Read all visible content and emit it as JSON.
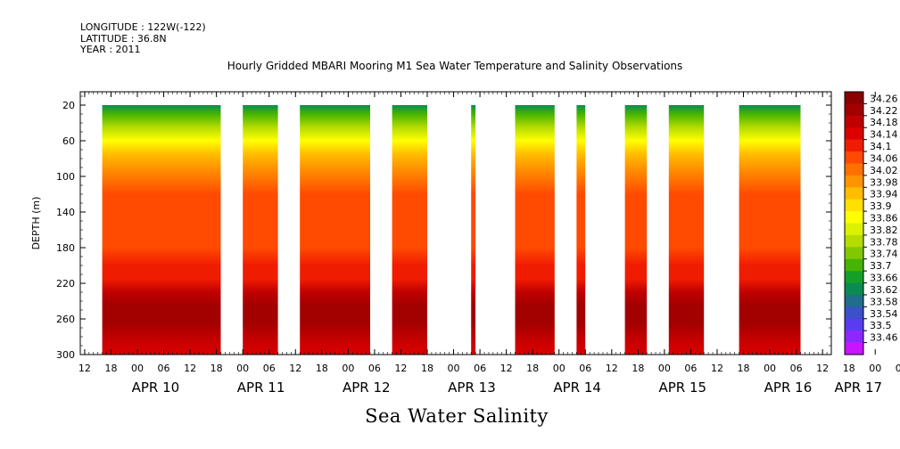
{
  "header": {
    "longitude": "LONGITUDE : 122W(-122)",
    "latitude": "LATITUDE : 36.8N",
    "year": "YEAR : 2011"
  },
  "chart_data": {
    "type": "heatmap",
    "title": "Hourly Gridded MBARI Mooring M1 Sea Water Temperature and Salinity Observations",
    "xlabel": "Sea Water Salinity",
    "ylabel": "DEPTH (m)",
    "x_axis": {
      "range_hours": [
        0,
        171
      ],
      "hour_ticks": [
        "12",
        "18",
        "00",
        "06",
        "12",
        "18",
        "00",
        "06",
        "12",
        "18",
        "00",
        "06",
        "12",
        "18",
        "00",
        "06",
        "12",
        "18",
        "00",
        "06",
        "12",
        "18",
        "00",
        "06",
        "12",
        "18",
        "00",
        "06",
        "12",
        "18",
        "00",
        "06",
        "12",
        "18",
        "00",
        "06"
      ],
      "day_labels": [
        {
          "label": "APR 10",
          "hour": 12
        },
        {
          "label": "APR 11",
          "hour": 36
        },
        {
          "label": "APR 12",
          "hour": 60
        },
        {
          "label": "APR 13",
          "hour": 84
        },
        {
          "label": "APR 14",
          "hour": 108
        },
        {
          "label": "APR 15",
          "hour": 132
        },
        {
          "label": "APR 16",
          "hour": 156
        },
        {
          "label": "APR 17",
          "hour": 172
        }
      ]
    },
    "y_axis": {
      "range": [
        300,
        5
      ],
      "reversed": true,
      "ticks": [
        20,
        60,
        100,
        140,
        180,
        220,
        260,
        300
      ]
    },
    "data_segments_hours": [
      [
        5,
        32
      ],
      [
        37,
        45
      ],
      [
        50,
        66
      ],
      [
        71,
        79
      ],
      [
        89,
        90
      ],
      [
        99,
        108
      ],
      [
        113,
        115
      ],
      [
        124,
        129
      ],
      [
        134,
        142
      ],
      [
        150,
        164
      ]
    ],
    "colorbar": {
      "levels": [
        "34.26",
        "34.22",
        "34.18",
        "34.14",
        "34.1",
        "34.06",
        "34.02",
        "33.98",
        "33.94",
        "33.9",
        "33.86",
        "33.82",
        "33.78",
        "33.74",
        "33.7",
        "33.66",
        "33.62",
        "33.58",
        "33.54",
        "33.5",
        "33.46"
      ],
      "colors": [
        "#8b0000",
        "#a30000",
        "#c00000",
        "#dc0000",
        "#f01c00",
        "#ff4a00",
        "#ff7000",
        "#ff9400",
        "#ffbd00",
        "#ffe000",
        "#ffff00",
        "#dcf000",
        "#b4dc00",
        "#82c800",
        "#46b400",
        "#14a028",
        "#0a8c50",
        "#1e6e8c",
        "#3c50c8",
        "#5a3cf0",
        "#8c28ff",
        "#c814ff"
      ]
    },
    "depth_profile": [
      {
        "depth": 20,
        "value": 33.64
      },
      {
        "depth": 30,
        "value": 33.73
      },
      {
        "depth": 45,
        "value": 33.81
      },
      {
        "depth": 60,
        "value": 33.88
      },
      {
        "depth": 75,
        "value": 33.95
      },
      {
        "depth": 90,
        "value": 34.0
      },
      {
        "depth": 105,
        "value": 34.03
      },
      {
        "depth": 120,
        "value": 34.06
      },
      {
        "depth": 140,
        "value": 34.08
      },
      {
        "depth": 160,
        "value": 34.09
      },
      {
        "depth": 180,
        "value": 34.09
      },
      {
        "depth": 200,
        "value": 34.1
      },
      {
        "depth": 215,
        "value": 34.13
      },
      {
        "depth": 230,
        "value": 34.18
      },
      {
        "depth": 245,
        "value": 34.23
      },
      {
        "depth": 255,
        "value": 34.25
      },
      {
        "depth": 265,
        "value": 34.24
      },
      {
        "depth": 280,
        "value": 34.19
      },
      {
        "depth": 300,
        "value": 34.16
      }
    ]
  }
}
